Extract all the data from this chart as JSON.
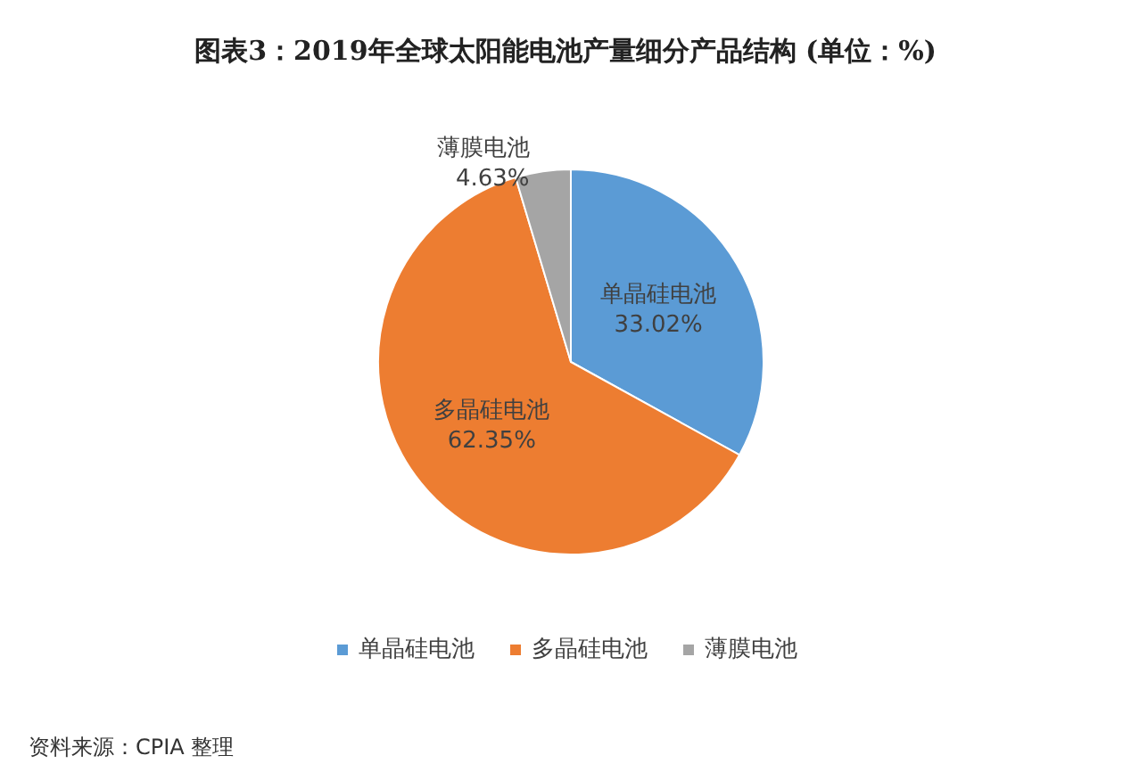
{
  "chart_data": {
    "type": "pie",
    "title": "图表3：2019年全球太阳能电池产量细分产品结构 (单位：%)",
    "categories": [
      "单晶硅电池",
      "多晶硅电池",
      "薄膜电池"
    ],
    "values": [
      33.02,
      62.35,
      4.63
    ],
    "colors": [
      "#5b9bd5",
      "#ed7d31",
      "#a5a5a5"
    ],
    "value_labels": [
      "33.02%",
      "62.35%",
      "4.63%"
    ],
    "legend": "bottom",
    "annotations": [
      "资料来源：CPIA 整理"
    ]
  }
}
